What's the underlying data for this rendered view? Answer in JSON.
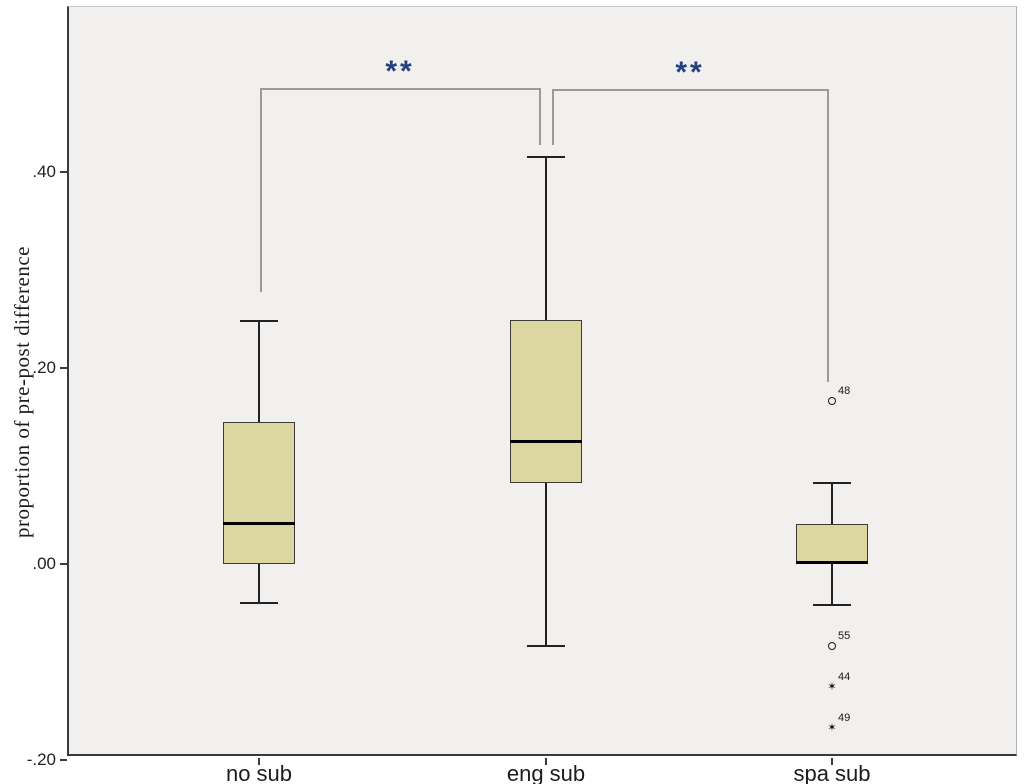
{
  "chart_data": {
    "type": "boxplot",
    "title": "",
    "xlabel": "",
    "ylabel": "proportion of pre-post difference",
    "ylim": [
      -0.2,
      0.57
    ],
    "grid": false,
    "legend": "none",
    "y_ticks": [
      {
        "label": ".40",
        "value": 0.4
      },
      {
        "label": ".20",
        "value": 0.2
      },
      {
        "label": ".00",
        "value": 0.0
      },
      {
        "label": "-.20",
        "value": -0.2
      }
    ],
    "categories": [
      "no sub",
      "eng sub",
      "spa sub"
    ],
    "boxes": [
      {
        "category": "no sub",
        "whisker_low": -0.04,
        "q1": 0.0,
        "median": 0.042,
        "q3": 0.145,
        "whisker_high": 0.248,
        "outliers": []
      },
      {
        "category": "eng sub",
        "whisker_low": -0.084,
        "q1": 0.083,
        "median": 0.126,
        "q3": 0.249,
        "whisker_high": 0.415,
        "outliers": []
      },
      {
        "category": "spa sub",
        "whisker_low": -0.042,
        "q1": 0.0,
        "median": 0.002,
        "q3": 0.041,
        "whisker_high": 0.083,
        "outliers": [
          {
            "label": "48",
            "value": 0.166,
            "marker": "circle"
          },
          {
            "label": "55",
            "value": -0.084,
            "marker": "circle"
          },
          {
            "label": "44",
            "value": -0.126,
            "marker": "star"
          },
          {
            "label": "49",
            "value": -0.167,
            "marker": "star"
          }
        ]
      }
    ],
    "significance_brackets": [
      {
        "label": "**",
        "from": 0,
        "to": 1,
        "bar_value": 0.486,
        "from_drop_to": 0.278,
        "to_drop_to": 0.428
      },
      {
        "label": "**",
        "from": 1,
        "to": 2,
        "bar_value": 0.485,
        "from_drop_to": 0.428,
        "to_drop_to": 0.186
      }
    ],
    "colors": {
      "box_fill": "#dbd6a2",
      "box_border": "#3c3c34",
      "median": "#000000",
      "whisker": "#222222",
      "bracket": "#9a9a9a",
      "significance": "#24427f",
      "plot_bg": "#f1f0ee",
      "axis": "#3c3c3c",
      "text": "#1c1c1c"
    }
  }
}
